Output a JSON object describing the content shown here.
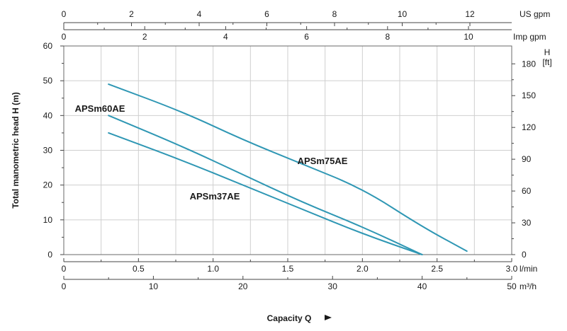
{
  "chart_data": {
    "type": "line",
    "ylabel": "Total manometric head H (m)",
    "xlabel": "Capacity Q",
    "x_unit_lmin": "l/min",
    "x_unit_m3h": "m³/h",
    "top_unit_usgpm": "US gpm",
    "top_unit_impgpm": "Imp gpm",
    "right_unit": "H\n[ft]",
    "x_range_lmin": [
      0,
      3.0
    ],
    "y_range_m": [
      0,
      60
    ],
    "grid": true,
    "axes": {
      "l_min": {
        "ticks": [
          0,
          0.5,
          1.0,
          1.5,
          2.0,
          2.5,
          3.0
        ],
        "labels": [
          "0",
          "0.5",
          "1.0",
          "1.5",
          "2.0",
          "2.5",
          "3.0"
        ]
      },
      "m3h": {
        "ticks": [
          0,
          10,
          20,
          30,
          40,
          50
        ],
        "labels": [
          "0",
          "10",
          "20",
          "30",
          "40",
          "50"
        ]
      },
      "us_gpm": {
        "ticks": [
          0,
          2,
          4,
          6,
          8,
          10,
          12
        ],
        "labels": [
          "0",
          "2",
          "4",
          "6",
          "8",
          "10",
          "12"
        ]
      },
      "imp_gpm": {
        "ticks": [
          0,
          2,
          4,
          6,
          8,
          10
        ],
        "labels": [
          "0",
          "2",
          "4",
          "6",
          "8",
          "10"
        ]
      },
      "head_m": {
        "ticks": [
          0,
          10,
          20,
          30,
          40,
          50,
          60
        ],
        "labels": [
          "0",
          "10",
          "20",
          "30",
          "40",
          "50",
          "60"
        ]
      },
      "head_ft": {
        "ticks": [
          0,
          30,
          60,
          90,
          120,
          150,
          180
        ],
        "labels": [
          "0",
          "30",
          "60",
          "90",
          "120",
          "150",
          "180"
        ]
      }
    },
    "series": [
      {
        "name": "APSm75AE",
        "x": [
          0.3,
          0.8,
          1.2,
          1.6,
          2.0,
          2.4,
          2.7
        ],
        "y": [
          49,
          41,
          33,
          26,
          19,
          8,
          1
        ]
      },
      {
        "name": "APSm60AE",
        "x": [
          0.3,
          0.8,
          1.2,
          1.6,
          2.0,
          2.4
        ],
        "y": [
          40,
          31,
          23,
          15,
          8,
          0
        ]
      },
      {
        "name": "APSm37AE",
        "x": [
          0.3,
          0.8,
          1.2,
          1.6,
          2.0,
          2.4
        ],
        "y": [
          35,
          27,
          20,
          13,
          6,
          0
        ]
      }
    ]
  }
}
